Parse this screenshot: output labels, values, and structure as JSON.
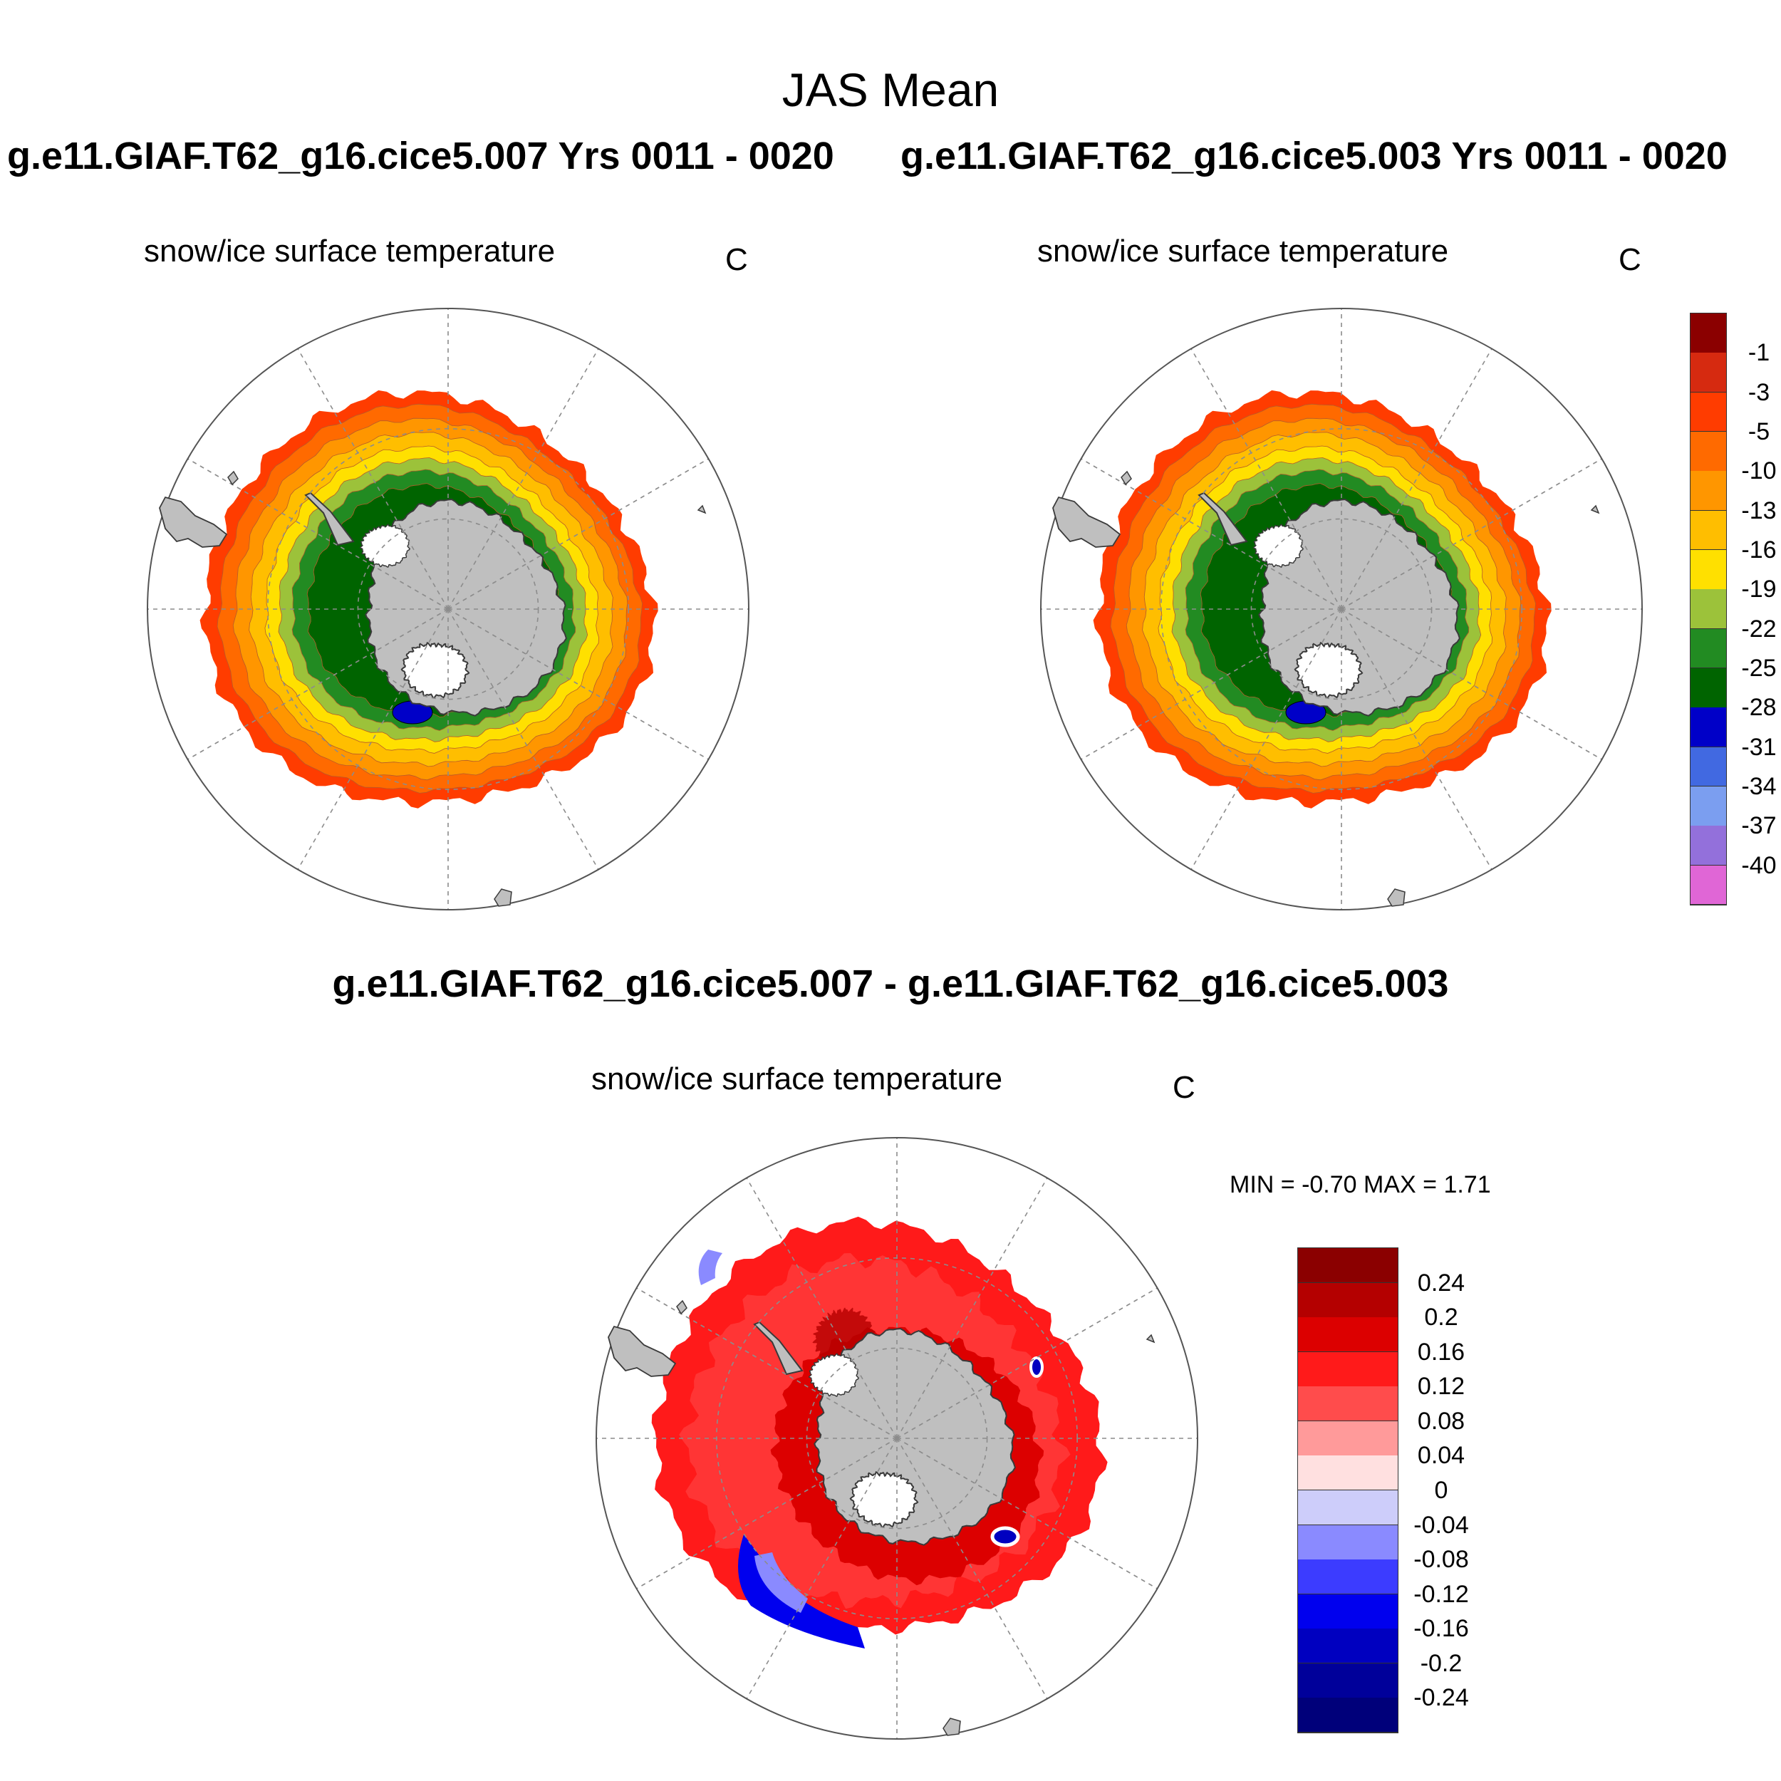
{
  "figure": {
    "title": "JAS Mean",
    "panels": [
      {
        "id": "left",
        "experiment": "g.e11.GIAF.T62_g16.cice5.007  Yrs 0011 - 0020",
        "variable": "snow/ice surface temperature",
        "units": "C"
      },
      {
        "id": "right",
        "experiment": "g.e11.GIAF.T62_g16.cice5.003  Yrs 0011 - 0020",
        "variable": "snow/ice surface temperature",
        "units": "C"
      }
    ],
    "difference": {
      "title": "g.e11.GIAF.T62_g16.cice5.007 - g.e11.GIAF.T62_g16.cice5.003",
      "variable": "snow/ice surface temperature",
      "units": "C",
      "minmax_text": "MIN =  -0.70 MAX =   1.71"
    }
  },
  "colorbars": {
    "temperature": {
      "labels": [
        "-1",
        "-3",
        "-5",
        "-10",
        "-13",
        "-16",
        "-19",
        "-22",
        "-25",
        "-28",
        "-31",
        "-34",
        "-37",
        "-40"
      ],
      "colors": [
        "#8b0000",
        "#d62a10",
        "#ff3c00",
        "#ff6a00",
        "#ff9600",
        "#ffbe00",
        "#ffe000",
        "#9cc23a",
        "#228b22",
        "#006400",
        "#0000c8",
        "#4169e1",
        "#7b9ef0",
        "#9370db",
        "#e066d6"
      ]
    },
    "difference": {
      "labels": [
        "0.24",
        "0.2",
        "0.16",
        "0.12",
        "0.08",
        "0.04",
        "0",
        "-0.04",
        "-0.08",
        "-0.12",
        "-0.16",
        "-0.2",
        "-0.24"
      ],
      "colors": [
        "#8b0000",
        "#b40000",
        "#dc0000",
        "#ff1a1a",
        "#ff4c4c",
        "#ff9a9a",
        "#ffe0e0",
        "#cdcdfa",
        "#8a8aff",
        "#3c3cff",
        "#0000ee",
        "#0000c0",
        "#00009a",
        "#00007a"
      ]
    }
  },
  "map_colors": {
    "land": "#bfbfbf",
    "coast": "#3a3a3a",
    "grid": "#8c8c8c"
  }
}
